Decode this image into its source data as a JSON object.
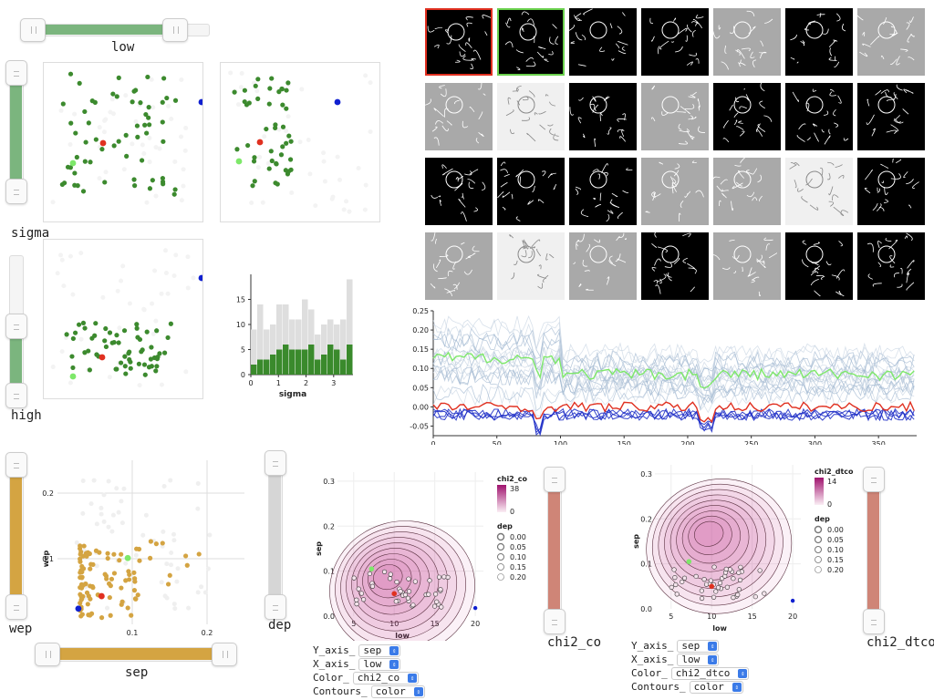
{
  "sliders": {
    "low": {
      "label": "low",
      "range": [
        0.18,
        0.86
      ]
    },
    "sigma": {
      "label": "sigma",
      "range": [
        0.1,
        0.9
      ]
    },
    "high": {
      "label": "high",
      "range": [
        0.0,
        0.55
      ]
    },
    "wep": {
      "label": "wep",
      "range": [
        0.0,
        1.0
      ]
    },
    "sep": {
      "label": "sep",
      "range": [
        0.0,
        1.0
      ]
    },
    "dep": {
      "label": "dep",
      "range": [
        0.0,
        1.0
      ]
    },
    "chi2_co": {
      "label": "chi2_co",
      "range": [
        0.0,
        1.0
      ]
    },
    "chi2_dtco": {
      "label": "chi2_dtco",
      "range": [
        0.0,
        1.0
      ]
    }
  },
  "histogram": {
    "xlabel": "sigma",
    "xticks": [
      "0",
      "1",
      "2",
      "3"
    ],
    "yticks": [
      "0",
      "5",
      "10",
      "15"
    ],
    "all": [
      9,
      14,
      9,
      10,
      14,
      14,
      11,
      11,
      15,
      13,
      8,
      10,
      11,
      10,
      11,
      19
    ],
    "selected": [
      2,
      3,
      3,
      4,
      5,
      6,
      5,
      5,
      5,
      6,
      3,
      4,
      6,
      5,
      3,
      6
    ]
  },
  "timeseries": {
    "xticks": [
      "0",
      "50",
      "100",
      "150",
      "200",
      "250",
      "300",
      "350"
    ],
    "yticks": [
      "0.25",
      "0.20",
      "0.15",
      "0.10",
      "0.05",
      "0.00",
      "-0.05"
    ]
  },
  "kde1": {
    "xlabel": "low",
    "ylabel": "sep",
    "xticks": [
      "5",
      "10",
      "15",
      "20"
    ],
    "yticks": [
      "0.0",
      "0.1",
      "0.2",
      "0.3"
    ],
    "colorbar_title": "chi2_co",
    "colorbar_max": "38",
    "colorbar_min": "0",
    "size_title": "dep",
    "sizes": [
      "0.00",
      "0.05",
      "0.10",
      "0.15",
      "0.20"
    ]
  },
  "kde2": {
    "xlabel": "low",
    "ylabel": "sep",
    "xticks": [
      "5",
      "10",
      "15",
      "20"
    ],
    "yticks": [
      "0.0",
      "0.1",
      "0.2",
      "0.3"
    ],
    "colorbar_title": "chi2_dtco",
    "colorbar_max": "14",
    "colorbar_min": "0",
    "size_title": "dep",
    "sizes": [
      "0.00",
      "0.05",
      "0.10",
      "0.15",
      "0.20"
    ]
  },
  "scatter_wep": {
    "xlabel": "sep",
    "ylabel": "wep",
    "xticks": [
      "0.1",
      "0.2"
    ],
    "yticks": [
      "0.1",
      "0.2"
    ]
  },
  "controls1": {
    "y_label": "Y_axis_",
    "y_value": "sep",
    "x_label": "X_axis_",
    "x_value": "low",
    "color_label": "Color_",
    "color_value": "chi2_co",
    "contours_label": "Contours_",
    "contours_value": "color"
  },
  "controls2": {
    "y_label": "Y_axis_",
    "y_value": "sep",
    "x_label": "X_axis_",
    "x_value": "low",
    "color_label": "Color_",
    "color_value": "chi2_dtco",
    "contours_label": "Contours_",
    "contours_value": "color"
  },
  "colors": {
    "green": "#3c8a2e",
    "red": "#e03020",
    "lightgreen": "#7ee86a",
    "blue": "#1020d0",
    "gold": "#d4a442",
    "salmon": "#cf8577",
    "slidergreen": "#7bb57e"
  }
}
